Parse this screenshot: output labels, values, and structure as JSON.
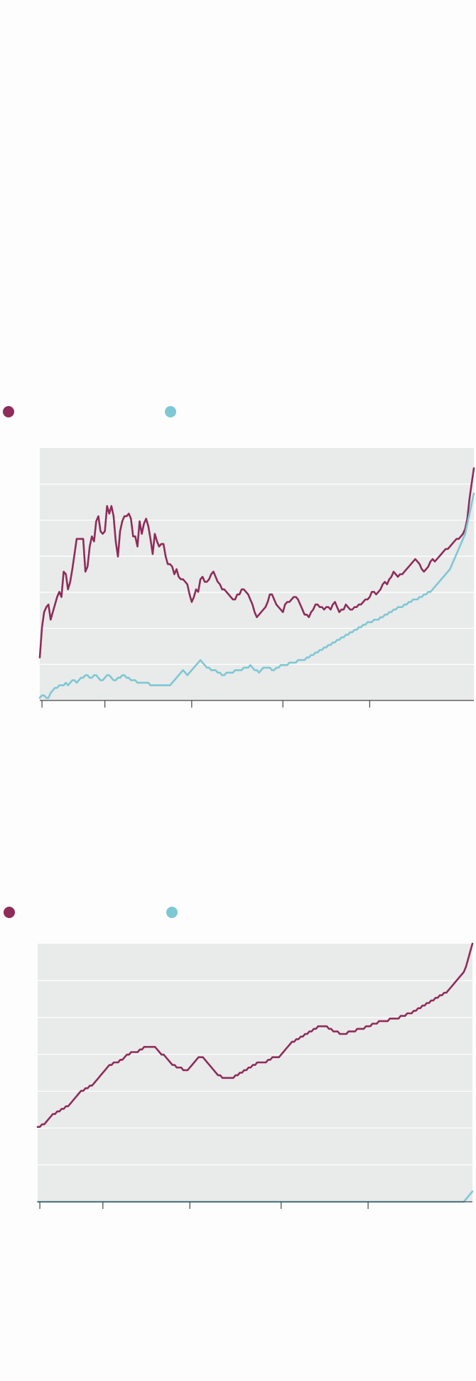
{
  "colors": {
    "series1": "#8e2c5a",
    "series2": "#7ec8d3",
    "plot_bg": "#e9eaea",
    "grid": "#ffffff",
    "axis": "#444444"
  },
  "chart_data": [
    {
      "type": "line",
      "title": "",
      "xlabel": "",
      "ylabel": "",
      "legend_placement": "top-left",
      "grid": true,
      "gridlines": 6,
      "xlim": [
        0,
        200
      ],
      "ylim": [
        0,
        100
      ],
      "x_ticks": [
        1,
        30,
        70,
        112,
        152
      ],
      "series": [
        {
          "name": "",
          "color_key": "series1",
          "values": [
            17,
            29,
            35,
            37,
            38,
            32,
            35,
            38,
            41,
            43,
            41,
            51,
            50,
            44,
            47,
            52,
            58,
            64,
            64,
            64,
            64,
            51,
            53,
            61,
            65,
            63,
            71,
            73,
            67,
            66,
            67,
            77,
            74,
            77,
            73,
            63,
            57,
            67,
            71,
            73,
            73,
            74,
            72,
            65,
            65,
            61,
            71,
            66,
            70,
            72,
            69,
            64,
            58,
            66,
            63,
            61,
            62,
            62,
            57,
            54,
            54,
            53,
            50,
            52,
            49,
            48,
            48,
            47,
            46,
            42,
            39,
            41,
            44,
            43,
            48,
            49,
            47,
            47,
            48,
            50,
            51,
            49,
            47,
            46,
            44,
            44,
            43,
            42,
            41,
            40,
            40,
            42,
            42,
            44,
            44,
            43,
            42,
            40,
            38,
            35,
            33,
            34,
            35,
            36,
            37,
            39,
            42,
            42,
            40,
            38,
            37,
            36,
            35,
            38,
            39,
            39,
            40,
            41,
            41,
            40,
            38,
            36,
            34,
            34,
            33,
            35,
            36,
            38,
            38,
            37,
            37,
            36,
            37,
            37,
            36,
            38,
            39,
            37,
            35,
            36,
            36,
            38,
            37,
            36,
            36,
            37,
            37,
            38,
            38,
            39,
            40,
            40,
            41,
            43,
            43,
            42,
            43,
            44,
            46,
            47,
            46,
            48,
            49,
            51,
            50,
            49,
            50,
            50,
            51,
            52,
            53,
            54,
            55,
            56,
            55,
            54,
            52,
            51,
            52,
            53,
            55,
            56,
            55,
            56,
            57,
            58,
            59,
            60,
            60,
            61,
            62,
            63,
            64,
            64,
            65,
            66,
            68,
            72,
            80,
            86,
            92
          ]
        },
        {
          "name": "",
          "color_key": "series2",
          "values": [
            1,
            2,
            2,
            1,
            1,
            3,
            4,
            5,
            5,
            6,
            6,
            6,
            7,
            6,
            7,
            8,
            8,
            7,
            8,
            9,
            9,
            10,
            10,
            9,
            9,
            10,
            10,
            9,
            8,
            8,
            9,
            10,
            10,
            9,
            8,
            8,
            9,
            9,
            10,
            10,
            9,
            9,
            8,
            8,
            8,
            7,
            7,
            7,
            7,
            7,
            7,
            6,
            6,
            6,
            6,
            6,
            6,
            6,
            6,
            6,
            6,
            7,
            8,
            9,
            10,
            11,
            12,
            11,
            10,
            11,
            12,
            13,
            14,
            15,
            16,
            15,
            14,
            13,
            13,
            12,
            12,
            12,
            11,
            11,
            10,
            10,
            11,
            11,
            11,
            11,
            12,
            12,
            12,
            12,
            13,
            13,
            13,
            14,
            13,
            12,
            12,
            11,
            12,
            13,
            13,
            13,
            13,
            12,
            12,
            13,
            13,
            14,
            14,
            14,
            14,
            15,
            15,
            15,
            15,
            16,
            16,
            16,
            16,
            17,
            17,
            18,
            18,
            19,
            19,
            20,
            20,
            21,
            21,
            22,
            22,
            23,
            23,
            24,
            24,
            25,
            25,
            26,
            26,
            27,
            27,
            28,
            28,
            29,
            29,
            30,
            30,
            31,
            31,
            31,
            32,
            32,
            32,
            33,
            33,
            34,
            34,
            35,
            35,
            36,
            36,
            37,
            37,
            37,
            38,
            38,
            39,
            39,
            40,
            40,
            40,
            41,
            41,
            42,
            42,
            43,
            43,
            44,
            45,
            46,
            47,
            48,
            49,
            50,
            51,
            52,
            54,
            56,
            58,
            60,
            62,
            64,
            66,
            70,
            74,
            78,
            82
          ]
        }
      ]
    },
    {
      "type": "line",
      "title": "",
      "xlabel": "",
      "ylabel": "",
      "legend_placement": "top-left",
      "grid": true,
      "gridlines": 6,
      "xlim": [
        0,
        200
      ],
      "ylim": [
        0,
        100
      ],
      "x_ticks": [
        1,
        30,
        70,
        112,
        152
      ],
      "series": [
        {
          "name": "",
          "color_key": "series1",
          "values": [
            29,
            29,
            30,
            30,
            31,
            32,
            33,
            34,
            34,
            35,
            35,
            36,
            36,
            37,
            37,
            38,
            39,
            40,
            41,
            42,
            43,
            43,
            44,
            44,
            45,
            45,
            46,
            47,
            48,
            49,
            50,
            51,
            52,
            53,
            53,
            54,
            54,
            54,
            55,
            55,
            56,
            57,
            57,
            58,
            58,
            58,
            58,
            59,
            59,
            60,
            60,
            60,
            60,
            60,
            60,
            59,
            58,
            57,
            57,
            56,
            55,
            54,
            53,
            53,
            52,
            52,
            52,
            51,
            51,
            51,
            52,
            53,
            54,
            55,
            56,
            56,
            56,
            55,
            54,
            53,
            52,
            51,
            50,
            49,
            49,
            48,
            48,
            48,
            48,
            48,
            48,
            49,
            49,
            50,
            50,
            51,
            51,
            52,
            52,
            53,
            53,
            54,
            54,
            54,
            54,
            54,
            55,
            55,
            56,
            56,
            56,
            56,
            57,
            58,
            59,
            60,
            61,
            62,
            62,
            63,
            63,
            64,
            64,
            65,
            65,
            66,
            66,
            67,
            67,
            68,
            68,
            68,
            68,
            68,
            67,
            67,
            66,
            66,
            66,
            65,
            65,
            65,
            65,
            66,
            66,
            66,
            66,
            67,
            67,
            67,
            67,
            68,
            68,
            68,
            69,
            69,
            69,
            70,
            70,
            70,
            70,
            70,
            71,
            71,
            71,
            71,
            71,
            72,
            72,
            72,
            73,
            73,
            73,
            74,
            74,
            75,
            75,
            76,
            76,
            77,
            77,
            78,
            78,
            79,
            79,
            80,
            80,
            81,
            81,
            82,
            83,
            84,
            85,
            86,
            87,
            88,
            89,
            91,
            94,
            97,
            100
          ]
        },
        {
          "name": "",
          "color_key": "series2",
          "values": [
            0,
            0,
            0,
            0,
            0,
            0,
            0,
            0,
            0,
            0,
            0,
            0,
            0,
            0,
            0,
            0,
            0,
            0,
            0,
            0,
            0,
            0,
            0,
            0,
            0,
            0,
            0,
            0,
            0,
            0,
            0,
            0,
            0,
            0,
            0,
            0,
            0,
            0,
            0,
            0,
            0,
            0,
            0,
            0,
            0,
            0,
            0,
            0,
            0,
            0,
            0,
            0,
            0,
            0,
            0,
            0,
            0,
            0,
            0,
            0,
            0,
            0,
            0,
            0,
            0,
            0,
            0,
            0,
            0,
            0,
            0,
            0,
            0,
            0,
            0,
            0,
            0,
            0,
            0,
            0,
            0,
            0,
            0,
            0,
            0,
            0,
            0,
            0,
            0,
            0,
            0,
            0,
            0,
            0,
            0,
            0,
            0,
            0,
            0,
            0,
            0,
            0,
            0,
            0,
            0,
            0,
            0,
            0,
            0,
            0,
            0,
            0,
            0,
            0,
            0,
            0,
            0,
            0,
            0,
            0,
            0,
            0,
            0,
            0,
            0,
            0,
            0,
            0,
            0,
            0,
            0,
            0,
            0,
            0,
            0,
            0,
            0,
            0,
            0,
            0,
            0,
            0,
            0,
            0,
            0,
            0,
            0,
            0,
            0,
            0,
            0,
            0,
            0,
            0,
            0,
            0,
            0,
            0,
            0,
            0,
            0,
            0,
            0,
            0,
            0,
            0,
            0,
            0,
            0,
            0,
            0,
            0,
            0,
            0,
            0,
            0,
            0,
            0,
            0,
            0,
            0,
            0,
            0,
            0,
            0,
            0,
            0,
            0,
            0,
            0,
            0,
            0,
            0,
            0,
            0,
            0,
            0,
            1,
            2,
            3,
            4
          ]
        }
      ]
    }
  ]
}
